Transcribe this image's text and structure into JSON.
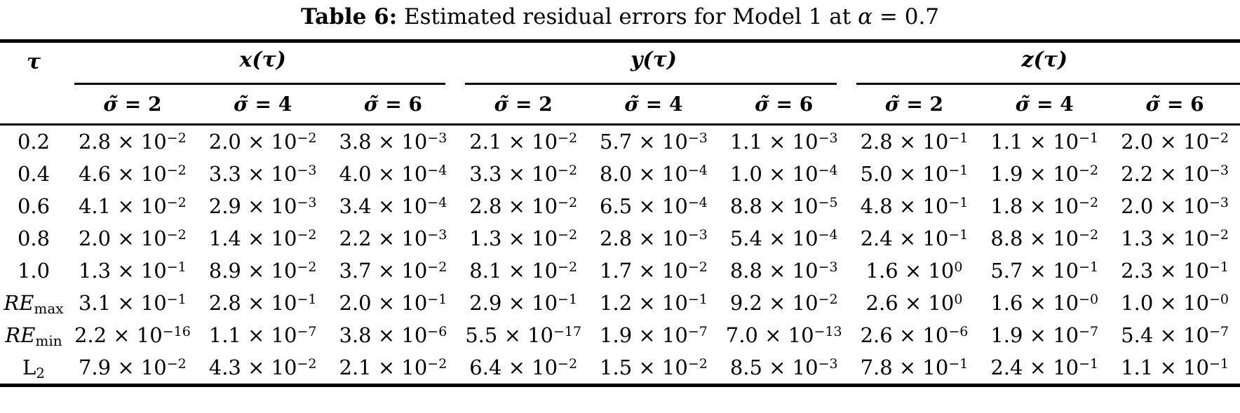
{
  "caption": {
    "label": "Table 6:",
    "text": " Estimated residual errors for Model 1 at ",
    "alpha": "α",
    "value": " = 0.7"
  },
  "table": {
    "corner_header": "τ",
    "groups": [
      {
        "label": "x(τ)"
      },
      {
        "label": "y(τ)"
      },
      {
        "label": "z(τ)"
      }
    ],
    "subheaders": [
      {
        "sym": "σ̃",
        "val": "2"
      },
      {
        "sym": "σ̃",
        "val": "4"
      },
      {
        "sym": "σ̃",
        "val": "6"
      }
    ],
    "rows": [
      {
        "label": {
          "text": "0.2",
          "sub": "",
          "italic": false
        },
        "cells": [
          [
            "2.8",
            "−2"
          ],
          [
            "2.0",
            "−2"
          ],
          [
            "3.8",
            "−3"
          ],
          [
            "2.1",
            "−2"
          ],
          [
            "5.7",
            "−3"
          ],
          [
            "1.1",
            "−3"
          ],
          [
            "2.8",
            "−1"
          ],
          [
            "1.1",
            "−1"
          ],
          [
            "2.0",
            "−2"
          ]
        ]
      },
      {
        "label": {
          "text": "0.4",
          "sub": "",
          "italic": false
        },
        "cells": [
          [
            "4.6",
            "−2"
          ],
          [
            "3.3",
            "−3"
          ],
          [
            "4.0",
            "−4"
          ],
          [
            "3.3",
            "−2"
          ],
          [
            "8.0",
            "−4"
          ],
          [
            "1.0",
            "−4"
          ],
          [
            "5.0",
            "−1"
          ],
          [
            "1.9",
            "−2"
          ],
          [
            "2.2",
            "−3"
          ]
        ]
      },
      {
        "label": {
          "text": "0.6",
          "sub": "",
          "italic": false
        },
        "cells": [
          [
            "4.1",
            "−2"
          ],
          [
            "2.9",
            "−3"
          ],
          [
            "3.4",
            "−4"
          ],
          [
            "2.8",
            "−2"
          ],
          [
            "6.5",
            "−4"
          ],
          [
            "8.8",
            "−5"
          ],
          [
            "4.8",
            "−1"
          ],
          [
            "1.8",
            "−2"
          ],
          [
            "2.0",
            "−3"
          ]
        ]
      },
      {
        "label": {
          "text": "0.8",
          "sub": "",
          "italic": false
        },
        "cells": [
          [
            "2.0",
            "−2"
          ],
          [
            "1.4",
            "−2"
          ],
          [
            "2.2",
            "−3"
          ],
          [
            "1.3",
            "−2"
          ],
          [
            "2.8",
            "−3"
          ],
          [
            "5.4",
            "−4"
          ],
          [
            "2.4",
            "−1"
          ],
          [
            "8.8",
            "−2"
          ],
          [
            "1.3",
            "−2"
          ]
        ]
      },
      {
        "label": {
          "text": "1.0",
          "sub": "",
          "italic": false
        },
        "cells": [
          [
            "1.3",
            "−1"
          ],
          [
            "8.9",
            "−2"
          ],
          [
            "3.7",
            "−2"
          ],
          [
            "8.1",
            "−2"
          ],
          [
            "1.7",
            "−2"
          ],
          [
            "8.8",
            "−3"
          ],
          [
            "1.6",
            "0"
          ],
          [
            "5.7",
            "−1"
          ],
          [
            "2.3",
            "−1"
          ]
        ]
      },
      {
        "label": {
          "text": "RE",
          "sub": "max",
          "italic": true
        },
        "cells": [
          [
            "3.1",
            "−1"
          ],
          [
            "2.8",
            "−1"
          ],
          [
            "2.0",
            "−1"
          ],
          [
            "2.9",
            "−1"
          ],
          [
            "1.2",
            "−1"
          ],
          [
            "9.2",
            "−2"
          ],
          [
            "2.6",
            "0"
          ],
          [
            "1.6",
            "−0"
          ],
          [
            "1.0",
            "−0"
          ]
        ]
      },
      {
        "label": {
          "text": "RE",
          "sub": "min",
          "italic": true
        },
        "cells": [
          [
            "2.2",
            "−16"
          ],
          [
            "1.1",
            "−7"
          ],
          [
            "3.8",
            "−6"
          ],
          [
            "5.5",
            "−17"
          ],
          [
            "1.9",
            "−7"
          ],
          [
            "7.0",
            "−13"
          ],
          [
            "2.6",
            "−6"
          ],
          [
            "1.9",
            "−7"
          ],
          [
            "5.4",
            "−7"
          ]
        ]
      },
      {
        "label": {
          "text": "L",
          "sub": "2",
          "italic": false
        },
        "cells": [
          [
            "7.9",
            "−2"
          ],
          [
            "4.3",
            "−2"
          ],
          [
            "2.1",
            "−2"
          ],
          [
            "6.4",
            "−2"
          ],
          [
            "1.5",
            "−2"
          ],
          [
            "8.5",
            "−3"
          ],
          [
            "7.8",
            "−1"
          ],
          [
            "2.4",
            "−1"
          ],
          [
            "1.1",
            "−1"
          ]
        ]
      }
    ],
    "times_notation": " × 10"
  }
}
